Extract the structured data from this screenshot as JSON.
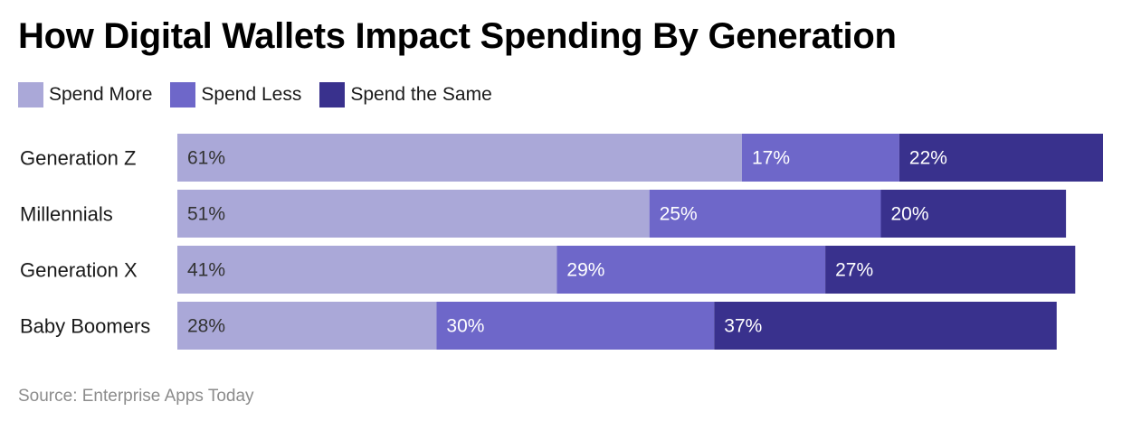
{
  "chart_data": {
    "type": "bar",
    "orientation": "horizontal",
    "stacked": true,
    "title": "How Digital Wallets Impact Spending By Generation",
    "categories": [
      "Generation Z",
      "Millennials",
      "Generation X",
      "Baby Boomers"
    ],
    "series": [
      {
        "name": "Spend More",
        "color": "#aaa8d8",
        "values": [
          61,
          51,
          41,
          28
        ]
      },
      {
        "name": "Spend Less",
        "color": "#6e67c9",
        "values": [
          17,
          25,
          29,
          30
        ]
      },
      {
        "name": "Spend the Same",
        "color": "#39318d",
        "values": [
          22,
          20,
          27,
          37
        ]
      }
    ],
    "value_suffix": "%",
    "legend_position": "top-left",
    "source": "Source: Enterprise Apps Today"
  }
}
